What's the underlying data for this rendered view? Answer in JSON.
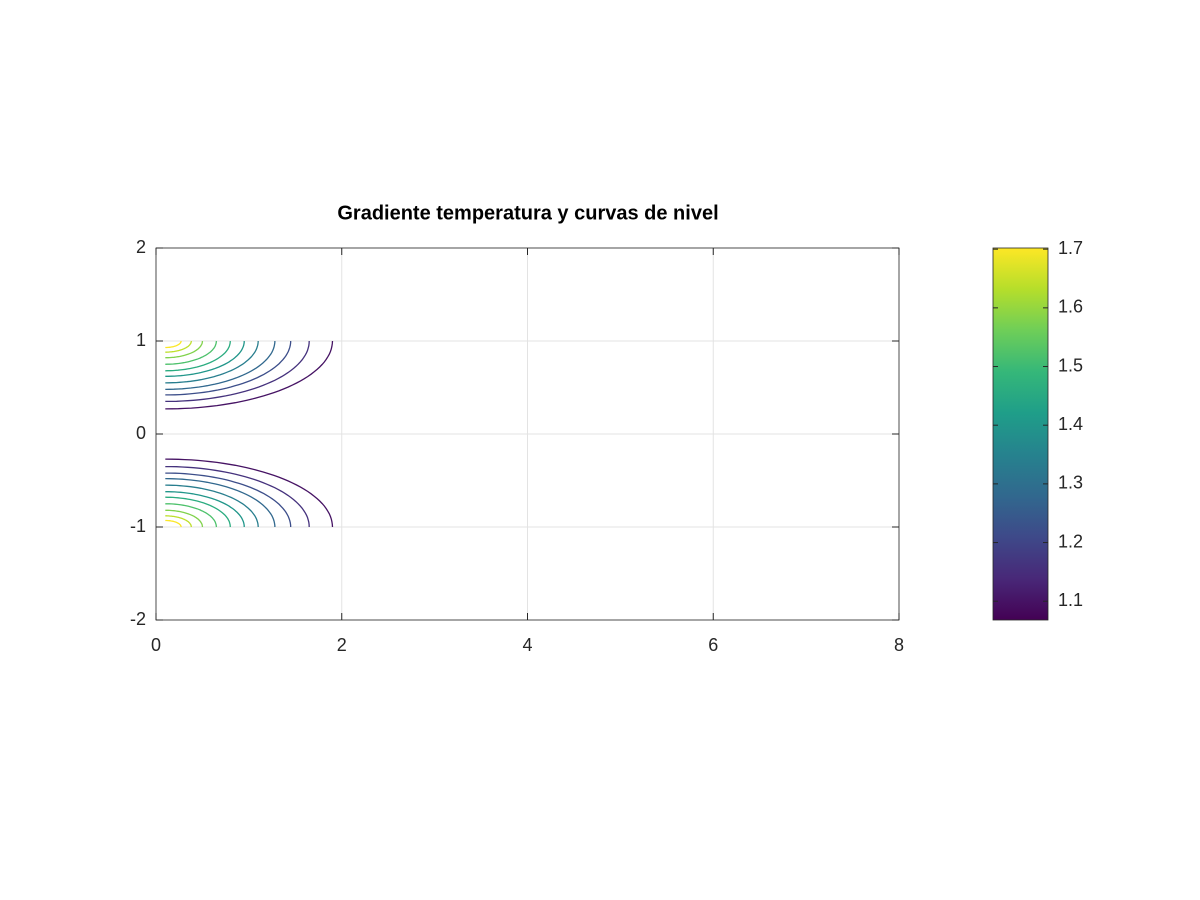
{
  "chart_data": {
    "type": "contour",
    "title": "Gradiente temperatura y curvas de nivel",
    "xlim": [
      0,
      8
    ],
    "ylim": [
      -2,
      2
    ],
    "xticks": [
      0,
      2,
      4,
      6,
      8
    ],
    "yticks": [
      -2,
      -1,
      0,
      1,
      2
    ],
    "grid": true,
    "contour_x0": 0.1,
    "contours": [
      {
        "level": 1.1,
        "x_end": 1.9,
        "y_base": 0.27
      },
      {
        "level": 1.16,
        "x_end": 1.65,
        "y_base": 0.35
      },
      {
        "level": 1.22,
        "x_end": 1.45,
        "y_base": 0.42
      },
      {
        "level": 1.28,
        "x_end": 1.28,
        "y_base": 0.48
      },
      {
        "level": 1.34,
        "x_end": 1.1,
        "y_base": 0.55
      },
      {
        "level": 1.4,
        "x_end": 0.95,
        "y_base": 0.62
      },
      {
        "level": 1.46,
        "x_end": 0.8,
        "y_base": 0.68
      },
      {
        "level": 1.52,
        "x_end": 0.65,
        "y_base": 0.75
      },
      {
        "level": 1.58,
        "x_end": 0.5,
        "y_base": 0.82
      },
      {
        "level": 1.64,
        "x_end": 0.38,
        "y_base": 0.88
      },
      {
        "level": 1.7,
        "x_end": 0.27,
        "y_base": 0.93
      }
    ],
    "mirror": true,
    "colormap": [
      "#440154",
      "#482878",
      "#3e4989",
      "#31688e",
      "#26828e",
      "#1f9e89",
      "#35b779",
      "#6ece58",
      "#b5de2b",
      "#fde725"
    ],
    "clim": [
      1.068,
      1.702
    ],
    "colorbar_ticks": [
      1.1,
      1.2,
      1.3,
      1.4,
      1.5,
      1.6,
      1.7
    ]
  }
}
